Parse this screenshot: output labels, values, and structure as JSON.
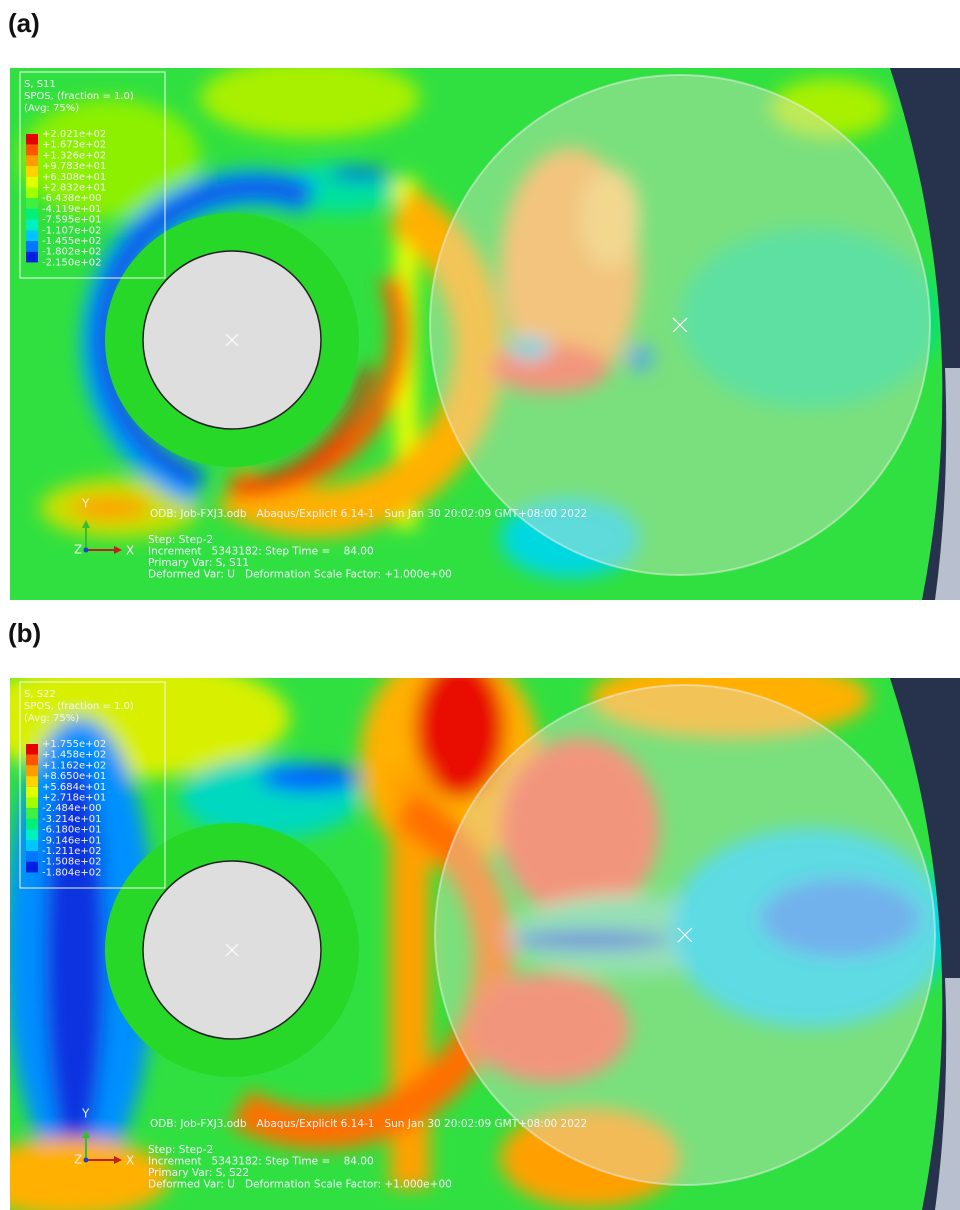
{
  "panels": [
    {
      "label": "(a)",
      "legend": {
        "title": [
          "S, S11",
          "SPOS, (fraction = 1.0)",
          "(Avg: 75%)"
        ],
        "values": [
          "+2.021e+02",
          "+1.673e+02",
          "+1.326e+02",
          "+9.783e+01",
          "+6.308e+01",
          "+2.832e+01",
          "-6.438e+00",
          "-4.119e+01",
          "-7.595e+01",
          "-1.107e+02",
          "-1.455e+02",
          "-1.802e+02",
          "-2.150e+02"
        ]
      },
      "axes": {
        "y": "Y",
        "z": "Z",
        "x": "X"
      },
      "info": {
        "odb": "ODB: Job-FXJ3.odb   Abaqus/Explicit 6.14-1   Sun Jan 30 20:02:09 GMT+08:00 2022",
        "lines": [
          "Step: Step-2",
          "Increment   5343182: Step Time =    84.00",
          "Primary Var: S, S11",
          "Deformed Var: U   Deformation Scale Factor: +1.000e+00"
        ]
      }
    },
    {
      "label": "(b)",
      "legend": {
        "title": [
          "S, S22",
          "SPOS, (fraction = 1.0)",
          "(Avg: 75%)"
        ],
        "values": [
          "+1.755e+02",
          "+1.458e+02",
          "+1.162e+02",
          "+8.650e+01",
          "+5.684e+01",
          "+2.718e+01",
          "-2.484e+00",
          "-3.214e+01",
          "-6.180e+01",
          "-9.146e+01",
          "-1.211e+02",
          "-1.508e+02",
          "-1.804e+02"
        ]
      },
      "axes": {
        "y": "Y",
        "z": "Z",
        "x": "X"
      },
      "info": {
        "odb": "ODB: Job-FXJ3.odb   Abaqus/Explicit 6.14-1   Sun Jan 30 20:02:09 GMT+08:00 2022",
        "lines": [
          "Step: Step-2",
          "Increment   5343182: Step Time =    84.00",
          "Primary Var: S, S22",
          "Deformed Var: U   Deformation Scale Factor: +1.000e+00"
        ]
      }
    }
  ]
}
